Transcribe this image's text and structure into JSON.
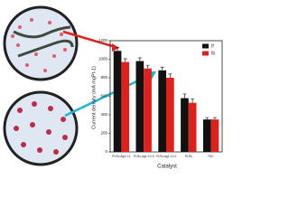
{
  "chart_data": {
    "type": "bar",
    "ylabel": "Current density (mA mg$_{Pt}^{-1}$)",
    "xlabel": "Catalyst",
    "categories": [
      "Pt-Ru-Ag1:1:1",
      "Pt-Ru-Ag1:1:0.5",
      "Pt-Ru-Ag1:1:0.2",
      "Pt-Ru",
      "Pt/C"
    ],
    "series": [
      {
        "name": "If",
        "color": "#111111",
        "values": [
          1090,
          980,
          880,
          580,
          350
        ],
        "errors": [
          40,
          35,
          35,
          45,
          20
        ]
      },
      {
        "name": "Ib",
        "color": "#e0201b",
        "values": [
          970,
          900,
          800,
          530,
          350
        ],
        "errors": [
          35,
          35,
          40,
          40,
          20
        ]
      }
    ],
    "ylim": [
      0,
      1200
    ],
    "yticks": [
      0,
      200,
      400,
      600,
      800,
      1000,
      1200
    ],
    "legend": "upper right"
  }
}
